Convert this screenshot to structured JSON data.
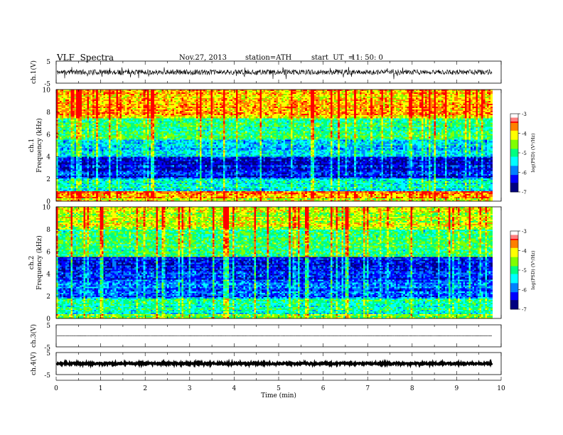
{
  "header": {
    "title": "VLF  Spectra",
    "date": "Nov.27, 2013",
    "station": "station=ATH",
    "start_label": "start  UT  =",
    "start_time": "11: 50: 0"
  },
  "chart_data": [
    {
      "type": "line",
      "panel": "ch1-waveform",
      "ylabel": "ch.1(V)",
      "ylim": [
        -5,
        5
      ],
      "yticks": [
        "5",
        "-5"
      ],
      "baseline": 0,
      "amplitude": 1.2
    },
    {
      "type": "heatmap",
      "panel": "ch1-spectrogram",
      "ylabel_lines": [
        "ch.1",
        "Frequency  (kHz)"
      ],
      "ylim": [
        0,
        10
      ],
      "yticks": [
        "10",
        "8",
        "6",
        "4",
        "2",
        "0"
      ],
      "xlim": [
        0,
        10
      ],
      "data_end_min": 9.8,
      "colorbar": {
        "label": "log(PSD) (V²/Hz)",
        "ticks": [
          "-3",
          "-4",
          "-5",
          "-6",
          "-7"
        ],
        "range": [
          -7,
          -3
        ]
      },
      "bands": [
        {
          "f_range": [
            0.0,
            0.3
          ],
          "level": -4.2
        },
        {
          "f_range": [
            0.3,
            0.9
          ],
          "level": -3.8
        },
        {
          "f_range": [
            0.9,
            2.0
          ],
          "level": -5.3
        },
        {
          "f_range": [
            2.0,
            4.0
          ],
          "level": -6.4
        },
        {
          "f_range": [
            4.0,
            5.5
          ],
          "level": -5.6
        },
        {
          "f_range": [
            5.5,
            7.5
          ],
          "level": -5.0
        },
        {
          "f_range": [
            7.5,
            10.0
          ],
          "level": -3.9
        }
      ]
    },
    {
      "type": "heatmap",
      "panel": "ch2-spectrogram",
      "ylabel_lines": [
        "ch.2",
        "Frequency  (kHz)"
      ],
      "ylim": [
        0,
        10
      ],
      "yticks": [
        "10",
        "8",
        "6",
        "4",
        "2",
        "0"
      ],
      "xlim": [
        0,
        10
      ],
      "data_end_min": 9.8,
      "colorbar": {
        "label": "log(PSD) (V²/Hz)",
        "ticks": [
          "-3",
          "-4",
          "-5",
          "-6",
          "-7"
        ],
        "range": [
          -7,
          -3
        ]
      },
      "bands": [
        {
          "f_range": [
            0.0,
            0.4
          ],
          "level": -4.6
        },
        {
          "f_range": [
            0.4,
            1.8
          ],
          "level": -5.2
        },
        {
          "f_range": [
            1.8,
            3.5
          ],
          "level": -6.0
        },
        {
          "f_range": [
            3.5,
            5.5
          ],
          "level": -6.3
        },
        {
          "f_range": [
            5.5,
            8.0
          ],
          "level": -5.0
        },
        {
          "f_range": [
            8.0,
            10.0
          ],
          "level": -4.3
        }
      ]
    },
    {
      "type": "line",
      "panel": "ch3-waveform",
      "ylabel": "ch.3(V)",
      "ylim": [
        -5,
        5
      ],
      "yticks": [
        "5",
        "-5"
      ],
      "baseline": 0,
      "amplitude": 0.05
    },
    {
      "type": "line",
      "panel": "ch4-waveform",
      "ylabel": "ch.4(V)",
      "ylim": [
        -5,
        5
      ],
      "yticks": [
        "5",
        "-5"
      ],
      "baseline": 0,
      "amplitude": 0.4
    }
  ],
  "x_axis": {
    "label": "Time  (min)",
    "ticks": [
      "0",
      "1",
      "2",
      "3",
      "4",
      "5",
      "6",
      "7",
      "8",
      "9",
      "10"
    ],
    "xlim": [
      0,
      10
    ]
  },
  "colors": {
    "colormap": [
      "#000000",
      "#000080",
      "#0000ff",
      "#0080ff",
      "#00ffff",
      "#00ff80",
      "#80ff00",
      "#ffff00",
      "#ff8000",
      "#ff0000",
      "#ffffff"
    ],
    "trace": "#000000"
  }
}
